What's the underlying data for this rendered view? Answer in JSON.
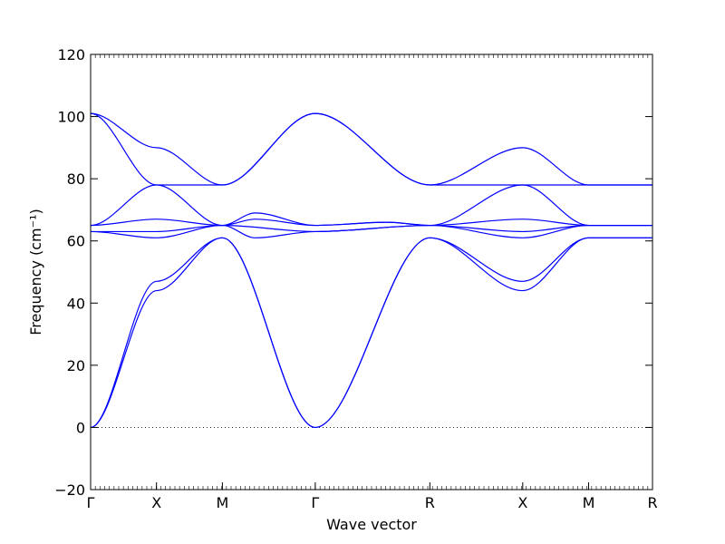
{
  "chart_data": {
    "type": "line",
    "title": "",
    "xlabel": "Wave vector",
    "ylabel": "Frequency (cm⁻¹)",
    "ylim": [
      -20,
      120
    ],
    "yticks": [
      "−20",
      "0",
      "20",
      "40",
      "60",
      "80",
      "100",
      "120"
    ],
    "ytick_values": [
      -20,
      0,
      20,
      40,
      60,
      80,
      100,
      120
    ],
    "xlim": [
      0,
      8.53
    ],
    "xticks": [
      {
        "label": "Γ",
        "x": 0
      },
      {
        "label": "X",
        "x": 1.0
      },
      {
        "label": "M",
        "x": 2.0
      },
      {
        "label": "Γ",
        "x": 3.41
      },
      {
        "label": "R",
        "x": 5.15
      },
      {
        "label": "X",
        "x": 6.56
      },
      {
        "label": "M",
        "x": 7.56
      },
      {
        "label": "R",
        "x": 8.53
      }
    ],
    "zero_line": "dotted",
    "line_color": "#0000ff",
    "series": [
      {
        "x": [
          0,
          1.0,
          2.0,
          3.41,
          5.15,
          6.56,
          7.56,
          8.53
        ],
        "values": [
          0,
          44,
          61,
          0,
          61,
          44,
          61,
          61
        ]
      },
      {
        "x": [
          0,
          1.0,
          2.0,
          3.41,
          5.15,
          6.56,
          7.56,
          8.53
        ],
        "values": [
          0,
          47,
          61,
          0,
          61,
          47,
          61,
          61
        ]
      },
      {
        "x": [
          0,
          1.0,
          2.0,
          3.41,
          5.15,
          6.56,
          7.56,
          8.53
        ],
        "values": [
          63,
          61,
          65,
          63,
          65,
          61,
          65,
          65
        ]
      },
      {
        "x": [
          0,
          1.0,
          2.0,
          2.5,
          3.41,
          5.15,
          6.56,
          7.56,
          8.53
        ],
        "values": [
          63,
          63,
          65,
          61,
          63,
          65,
          63,
          65,
          65
        ]
      },
      {
        "x": [
          0,
          1.0,
          2.0,
          2.5,
          3.41,
          4.5,
          5.15,
          6.56,
          7.56,
          8.53
        ],
        "values": [
          65,
          67,
          65,
          67,
          65,
          66,
          65,
          67,
          65,
          65
        ]
      },
      {
        "x": [
          0,
          1.0,
          2.0,
          2.5,
          3.41,
          4.5,
          5.15,
          6.56,
          7.56,
          8.53
        ],
        "values": [
          65,
          78,
          65,
          69,
          65,
          66,
          65,
          78,
          65,
          65
        ]
      },
      {
        "x": [
          0,
          1.0,
          2.0,
          3.41,
          5.15,
          6.56,
          7.56,
          8.53
        ],
        "values": [
          101,
          78,
          78,
          101,
          78,
          78,
          78,
          78
        ]
      },
      {
        "x": [
          0,
          1.0,
          2.0,
          3.41,
          5.15,
          6.56,
          7.56,
          8.53
        ],
        "values": [
          101,
          90,
          78,
          101,
          78,
          90,
          78,
          78
        ]
      }
    ]
  }
}
